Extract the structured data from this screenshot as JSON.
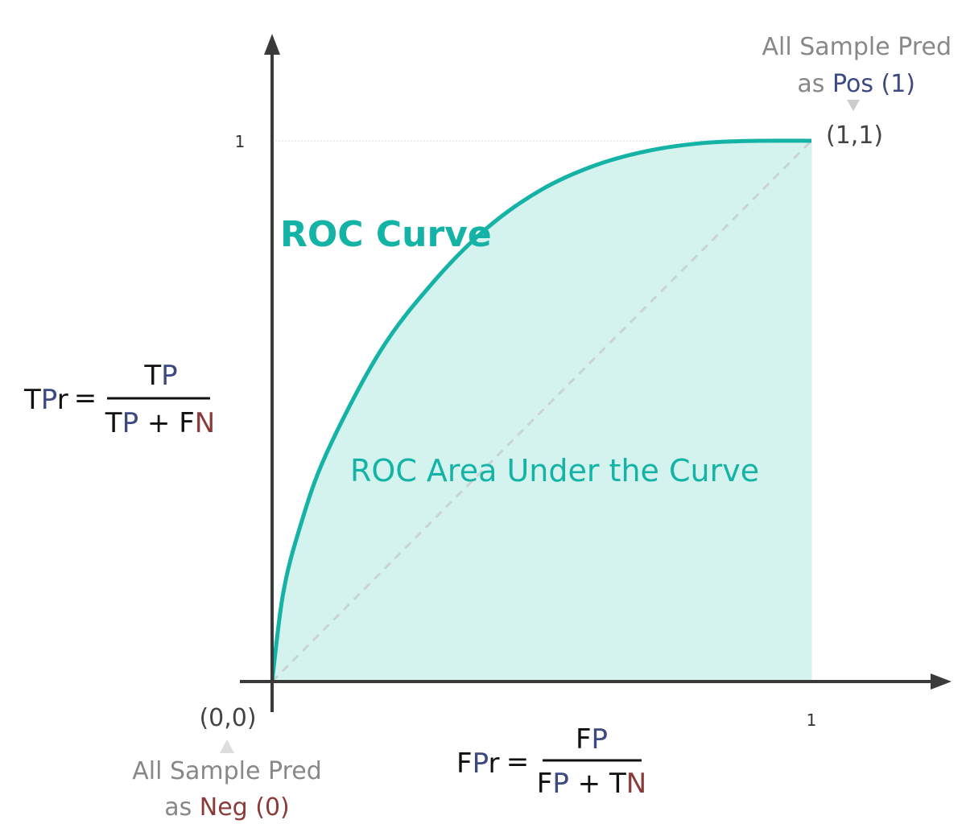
{
  "chart_data": {
    "type": "area",
    "title": "ROC Curve",
    "area_label": "ROC Area Under the Curve",
    "xlim": [
      0,
      1
    ],
    "ylim": [
      0,
      1
    ],
    "x_ticks": [
      "1"
    ],
    "y_ticks": [
      "1"
    ],
    "grid": false,
    "curve": {
      "x": [
        0,
        0.02,
        0.05,
        0.1,
        0.2,
        0.3,
        0.4,
        0.5,
        0.6,
        0.7,
        0.8,
        0.9,
        1.0
      ],
      "y": [
        0,
        0.16,
        0.28,
        0.42,
        0.61,
        0.74,
        0.84,
        0.91,
        0.955,
        0.982,
        0.996,
        1.0,
        1.0
      ]
    },
    "diagonal": {
      "x": [
        0,
        1
      ],
      "y": [
        0,
        1
      ]
    },
    "points": [
      {
        "label": "(0,0)",
        "note_line1": "All Sample Pred",
        "note_prefix": "as ",
        "note_class": "Neg (0)"
      },
      {
        "label": "(1,1)",
        "note_line1": "All Sample Pred",
        "note_prefix": "as ",
        "note_class": "Pos (1)"
      }
    ],
    "colors": {
      "curve": "#14b3a6",
      "area": "#d5f3ee",
      "diagonal": "#c8d4d2",
      "positive": "#3d4a82",
      "negative": "#8b3a3a",
      "axis": "#3a3a3a"
    }
  },
  "formulas": {
    "tpr": {
      "lhs_t": "T",
      "lhs_p": "P",
      "lhs_r": "r",
      "eq": "=",
      "num_t": "T",
      "num_p": "P",
      "den_t": "T",
      "den_p": "P",
      "den_plus": " + ",
      "den_f": "F",
      "den_n": "N"
    },
    "fpr": {
      "lhs_f": "F",
      "lhs_p": "P",
      "lhs_r": "r",
      "eq": "=",
      "num_f": "F",
      "num_p": "P",
      "den_f": "F",
      "den_p": "P",
      "den_plus": " + ",
      "den_t": "T",
      "den_n": "N"
    }
  }
}
